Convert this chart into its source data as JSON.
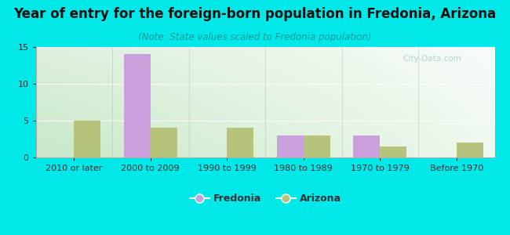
{
  "title": "Year of entry for the foreign-born population in Fredonia, Arizona",
  "subtitle": "(Note: State values scaled to Fredonia population)",
  "categories": [
    "2010 or later",
    "2000 to 2009",
    "1990 to 1999",
    "1980 to 1989",
    "1970 to 1979",
    "Before 1970"
  ],
  "fredonia_values": [
    0,
    14,
    0,
    3,
    3,
    0
  ],
  "arizona_values": [
    5,
    4,
    4,
    3,
    1.5,
    2
  ],
  "fredonia_color": "#c9a0dc",
  "arizona_color": "#b5c47a",
  "background_outer": "#00e8e8",
  "background_inner_top_left": "#e8f5e0",
  "background_inner_top_right": "#f5faf5",
  "background_inner_bottom_left": "#d0ecd0",
  "background_inner_bottom_right": "#ffffff",
  "ylim": [
    0,
    15
  ],
  "yticks": [
    0,
    5,
    10,
    15
  ],
  "bar_width": 0.35,
  "title_fontsize": 12,
  "subtitle_fontsize": 8.5,
  "tick_fontsize": 8,
  "legend_fontsize": 9,
  "watermark_text": "City-Data.com"
}
